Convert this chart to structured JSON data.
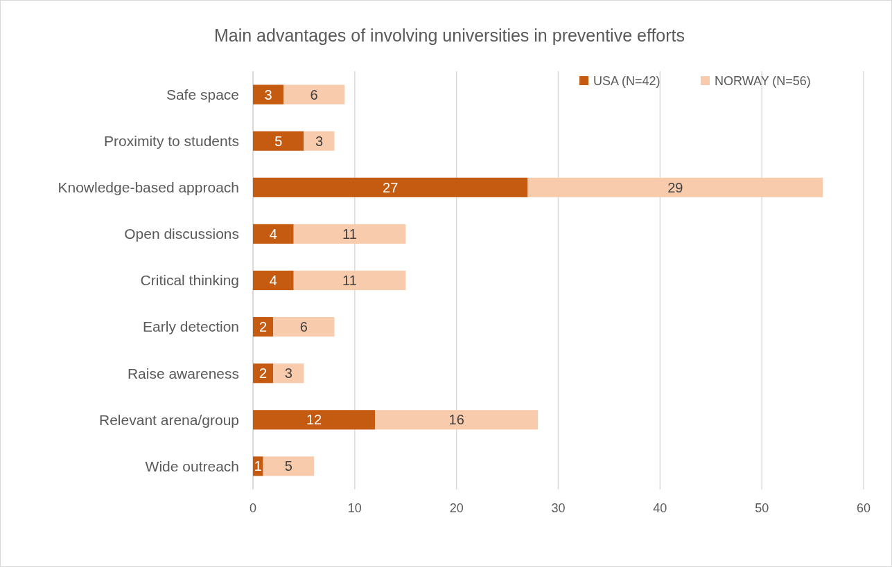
{
  "chart_data": {
    "type": "bar",
    "title": "Main advantages of involving universities in preventive efforts",
    "orientation": "horizontal",
    "stacked": true,
    "categories": [
      "Safe space",
      "Proximity to students",
      "Knowledge-based approach",
      "Open discussions",
      "Critical thinking",
      "Early detection",
      "Raise awareness",
      "Relevant arena/group",
      "Wide outreach"
    ],
    "series": [
      {
        "name": "USA (N=42)",
        "color": "#c55a11",
        "values": [
          3,
          5,
          27,
          4,
          4,
          2,
          2,
          12,
          1
        ]
      },
      {
        "name": "NORWAY (N=56)",
        "color": "#f8cbad",
        "values": [
          6,
          3,
          29,
          11,
          11,
          6,
          3,
          16,
          5
        ]
      }
    ],
    "xlim": [
      0,
      60
    ],
    "xticks": [
      0,
      10,
      20,
      30,
      40,
      50,
      60
    ],
    "grid": "x",
    "legend": "top right",
    "data_labels": true
  }
}
